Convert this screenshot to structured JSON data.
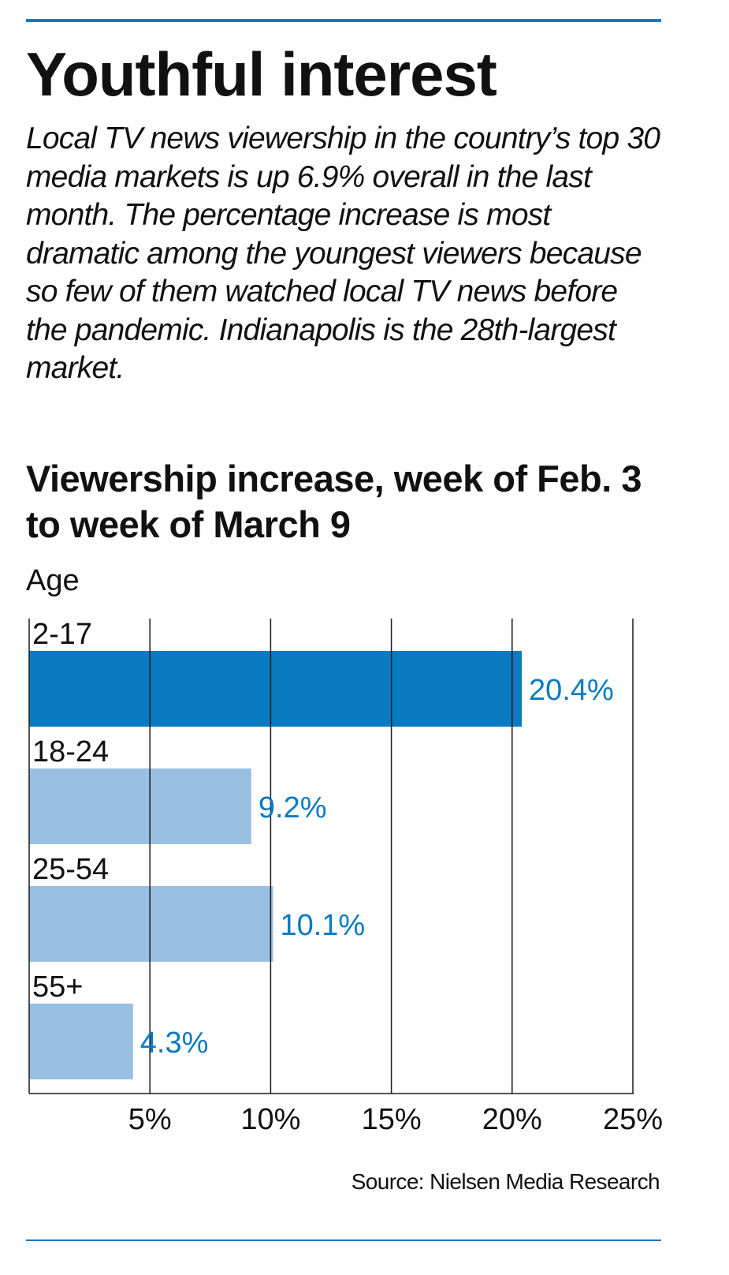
{
  "headline": "Youthful interest",
  "intro": "Local TV news viewership in the country’s top 30 media markets is up 6.9% overall in the last month. The percentage increase is most dramatic among the youngest viewers because so few of them watched local TV news before the pandemic. Indianapolis is the 28th-largest market.",
  "source": "Source: Nielsen Media Research",
  "colors": {
    "rule": "#0a7ac2",
    "highlight_bar": "#0a7ac2",
    "bar": "#99bfe3",
    "value_label": "#0a7ac2",
    "grid": "#1a1a1a"
  },
  "chart_data": {
    "type": "bar",
    "orientation": "horizontal",
    "title": "Viewership increase, week of Feb. 3 to week of March 9",
    "ylabel": "Age",
    "xlabel": "",
    "categories": [
      "2-17",
      "18-24",
      "25-54",
      "55+"
    ],
    "values": [
      20.4,
      9.2,
      10.1,
      4.3
    ],
    "value_labels": [
      "20.4%",
      "9.2%",
      "10.1%",
      "4.3%"
    ],
    "highlighted": [
      "2-17"
    ],
    "xlim": [
      0,
      25
    ],
    "xticks": [
      5,
      10,
      15,
      20,
      25
    ],
    "xtick_labels": [
      "5%",
      "10%",
      "15%",
      "20%",
      "25%"
    ],
    "grid": true
  }
}
